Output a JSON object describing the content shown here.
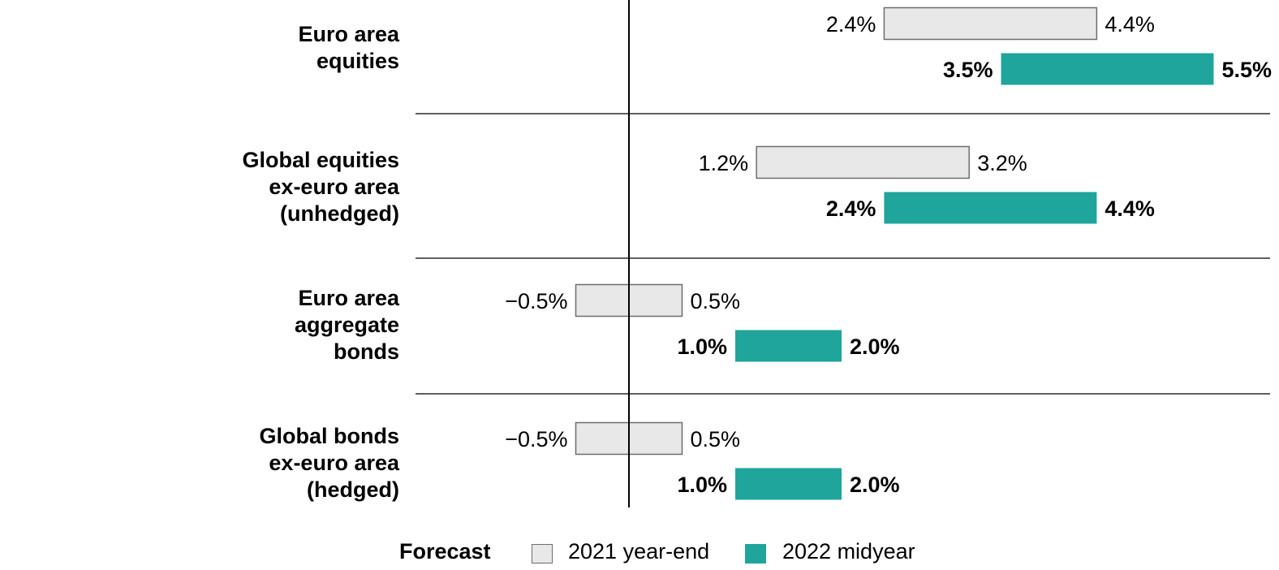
{
  "chart_data": {
    "type": "bar",
    "subtype": "range (floating bars)",
    "categories": [
      "Euro area\nequities",
      "Global equities\nex-euro area\n(unhedged)",
      "Euro area\naggregate\nbonds",
      "Global bonds\nex-euro area\n(hedged)"
    ],
    "series": [
      {
        "name": "2021 year-end",
        "color": "#e8e8e8",
        "stroke": "#6d6d6d",
        "ranges": [
          [
            2.4,
            4.4
          ],
          [
            1.2,
            3.2
          ],
          [
            -0.5,
            0.5
          ],
          [
            -0.5,
            0.5
          ]
        ],
        "labels": [
          [
            "2.4%",
            "4.4%"
          ],
          [
            "1.2%",
            "3.2%"
          ],
          [
            "−0.5%",
            "0.5%"
          ],
          [
            "−0.5%",
            "0.5%"
          ]
        ],
        "label_weight": "normal"
      },
      {
        "name": "2022 midyear",
        "color": "#1fa59b",
        "ranges": [
          [
            3.5,
            5.5
          ],
          [
            2.4,
            4.4
          ],
          [
            1.0,
            2.0
          ],
          [
            1.0,
            2.0
          ]
        ],
        "labels": [
          [
            "3.5%",
            "5.5%"
          ],
          [
            "2.4%",
            "4.4%"
          ],
          [
            "1.0%",
            "2.0%"
          ],
          [
            "1.0%",
            "2.0%"
          ]
        ],
        "label_weight": "bold"
      }
    ],
    "xlim": [
      -2.0,
      6.0
    ],
    "zero_line": true,
    "category_separators": true,
    "grid": false,
    "legend_placement": "bottom"
  },
  "legend": {
    "title": "Forecast",
    "items": [
      {
        "label": "2021 year-end",
        "color": "#e8e8e8",
        "stroke": "#6d6d6d"
      },
      {
        "label": "2022 midyear",
        "color": "#1fa59b"
      }
    ]
  }
}
